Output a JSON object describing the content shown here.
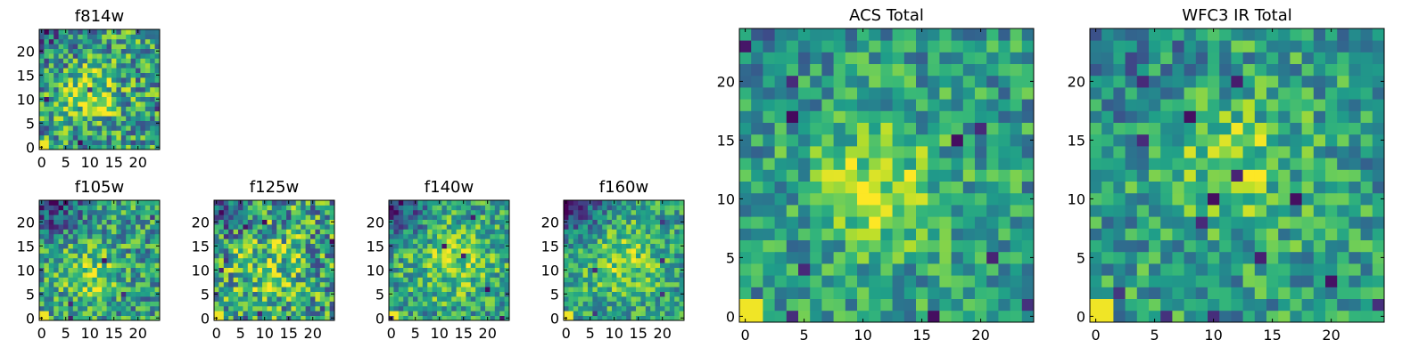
{
  "chart_data": [
    {
      "type": "heatmap",
      "title": "f814w",
      "xticks": [
        0,
        5,
        10,
        15,
        20
      ],
      "yticks": [
        0,
        5,
        10,
        15,
        20
      ],
      "xlim": [
        0,
        24
      ],
      "ylim": [
        0,
        24
      ],
      "grid_size": [
        25,
        25
      ],
      "colormap": "viridis",
      "description": "noise field with slight brightening near the centre and a bright corner at the lower-left"
    },
    {
      "type": "heatmap",
      "title": "f105w",
      "xticks": [
        0,
        5,
        10,
        15,
        20
      ],
      "yticks": [
        0,
        5,
        10,
        15,
        20
      ],
      "xlim": [
        0,
        24
      ],
      "ylim": [
        0,
        24
      ],
      "grid_size": [
        25,
        25
      ],
      "colormap": "viridis"
    },
    {
      "type": "heatmap",
      "title": "f125w",
      "xticks": [
        0,
        5,
        10,
        15,
        20
      ],
      "yticks": [
        0,
        5,
        10,
        15,
        20
      ],
      "xlim": [
        0,
        24
      ],
      "ylim": [
        0,
        24
      ],
      "grid_size": [
        25,
        25
      ],
      "colormap": "viridis"
    },
    {
      "type": "heatmap",
      "title": "f140w",
      "xticks": [
        0,
        5,
        10,
        15,
        20
      ],
      "yticks": [
        0,
        5,
        10,
        15,
        20
      ],
      "xlim": [
        0,
        24
      ],
      "ylim": [
        0,
        24
      ],
      "grid_size": [
        25,
        25
      ],
      "colormap": "viridis"
    },
    {
      "type": "heatmap",
      "title": "f160w",
      "xticks": [
        0,
        5,
        10,
        15,
        20
      ],
      "yticks": [
        0,
        5,
        10,
        15,
        20
      ],
      "xlim": [
        0,
        24
      ],
      "ylim": [
        0,
        24
      ],
      "grid_size": [
        25,
        25
      ],
      "colormap": "viridis"
    },
    {
      "type": "heatmap",
      "title": "ACS Total",
      "xticks": [
        0,
        5,
        10,
        15,
        20
      ],
      "yticks": [
        0,
        5,
        10,
        15,
        20
      ],
      "xlim": [
        0,
        24
      ],
      "ylim": [
        0,
        24
      ],
      "grid_size": [
        25,
        25
      ],
      "colormap": "viridis"
    },
    {
      "type": "heatmap",
      "title": "WFC3 IR Total",
      "xticks": [
        0,
        5,
        10,
        15,
        20
      ],
      "yticks": [
        0,
        5,
        10,
        15,
        20
      ],
      "xlim": [
        0,
        24
      ],
      "ylim": [
        0,
        24
      ],
      "grid_size": [
        25,
        25
      ],
      "colormap": "viridis"
    }
  ]
}
